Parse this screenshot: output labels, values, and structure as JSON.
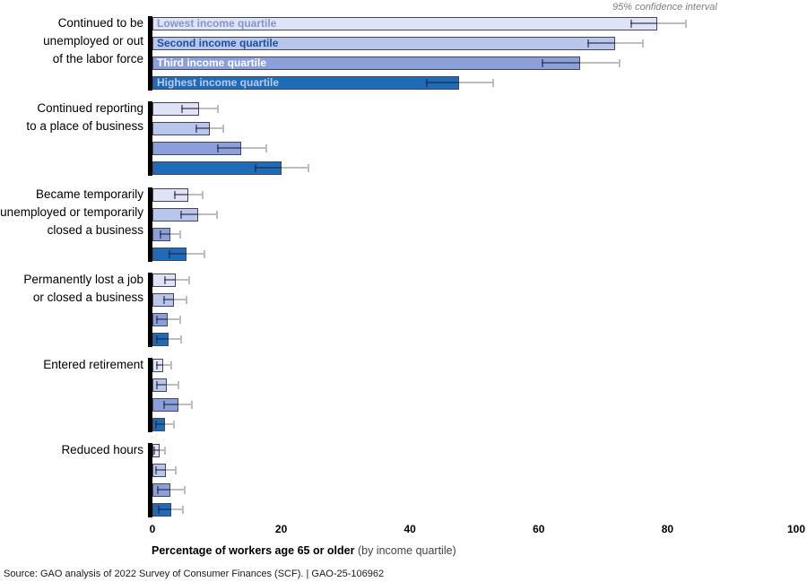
{
  "annotation": "95% confidence interval",
  "axis": {
    "label_bold": "Percentage of workers age 65 or older",
    "label_note": " (by income quartile)"
  },
  "source": "Source: GAO analysis of 2022 Survey of Consumer Finances (SCF).  |  GAO-25-106962",
  "chart_data": {
    "type": "bar",
    "orientation": "horizontal",
    "title": "",
    "xlabel": "Percentage of workers age 65 or older (by income quartile)",
    "annotation": "95% confidence interval",
    "xlim": [
      0,
      100
    ],
    "xticks": [
      "0",
      "20",
      "40",
      "60",
      "80",
      "100"
    ],
    "grid": false,
    "legend_position": "labels inside first group of bars",
    "categories": [
      "Continued to be unemployed or out of the labor force",
      "Continued reporting to a place of business",
      "Became temporarily unemployed or temporarily closed a business",
      "Permanently lost a job or closed a business",
      "Entered retirement",
      "Reduced hours"
    ],
    "category_lines": [
      [
        "Continued to be",
        "unemployed or out",
        "of the labor force"
      ],
      [
        "Continued reporting",
        "to a place of business"
      ],
      [
        "Became temporarily",
        "unemployed or temporarily",
        "closed a business"
      ],
      [
        "Permanently lost a job",
        "or closed a business"
      ],
      [
        "Entered retirement"
      ],
      [
        "Reduced hours"
      ]
    ],
    "series": [
      {
        "name": "Lowest income quartile",
        "fill": "#dee4f5",
        "label_color": "#8395cc",
        "values": [
          78.4,
          7.2,
          5.6,
          3.6,
          1.7,
          1.1
        ],
        "ci_low": [
          74.3,
          4.5,
          3.3,
          1.8,
          0.5,
          0.2
        ],
        "ci_high": [
          82.8,
          10.2,
          7.8,
          5.7,
          2.9,
          2.0
        ]
      },
      {
        "name": "Second income quartile",
        "fill": "#b9c6eb",
        "label_color": "#1c4f9c",
        "values": [
          71.9,
          8.9,
          7.1,
          3.3,
          2.2,
          2.1
        ],
        "ci_low": [
          67.5,
          6.7,
          4.3,
          1.7,
          0.5,
          0.4
        ],
        "ci_high": [
          76.2,
          11.0,
          10.0,
          5.3,
          4.0,
          3.6
        ]
      },
      {
        "name": "Third income quartile",
        "fill": "#8ba0da",
        "label_color": "#ffffff",
        "values": [
          66.5,
          13.8,
          2.8,
          2.4,
          4.0,
          2.8
        ],
        "ci_low": [
          60.5,
          10.0,
          1.1,
          0.5,
          1.7,
          0.7
        ],
        "ci_high": [
          72.6,
          17.7,
          4.3,
          4.3,
          6.1,
          5.0
        ]
      },
      {
        "name": "Highest income quartile",
        "fill": "#1e6cb8",
        "label_color": "#b9c8ec",
        "values": [
          47.7,
          20.0,
          5.3,
          2.5,
          1.9,
          2.9
        ],
        "ci_low": [
          42.5,
          15.9,
          2.5,
          0.5,
          0.4,
          0.8
        ],
        "ci_high": [
          52.9,
          24.2,
          8.1,
          4.5,
          3.3,
          4.7
        ]
      }
    ],
    "colors": {
      "bar_border": "#45455a",
      "group_spine": "#000000",
      "ci_inner": "rgba(35,35,55,0.55)",
      "ci_outer": "#bdbdbd"
    }
  }
}
